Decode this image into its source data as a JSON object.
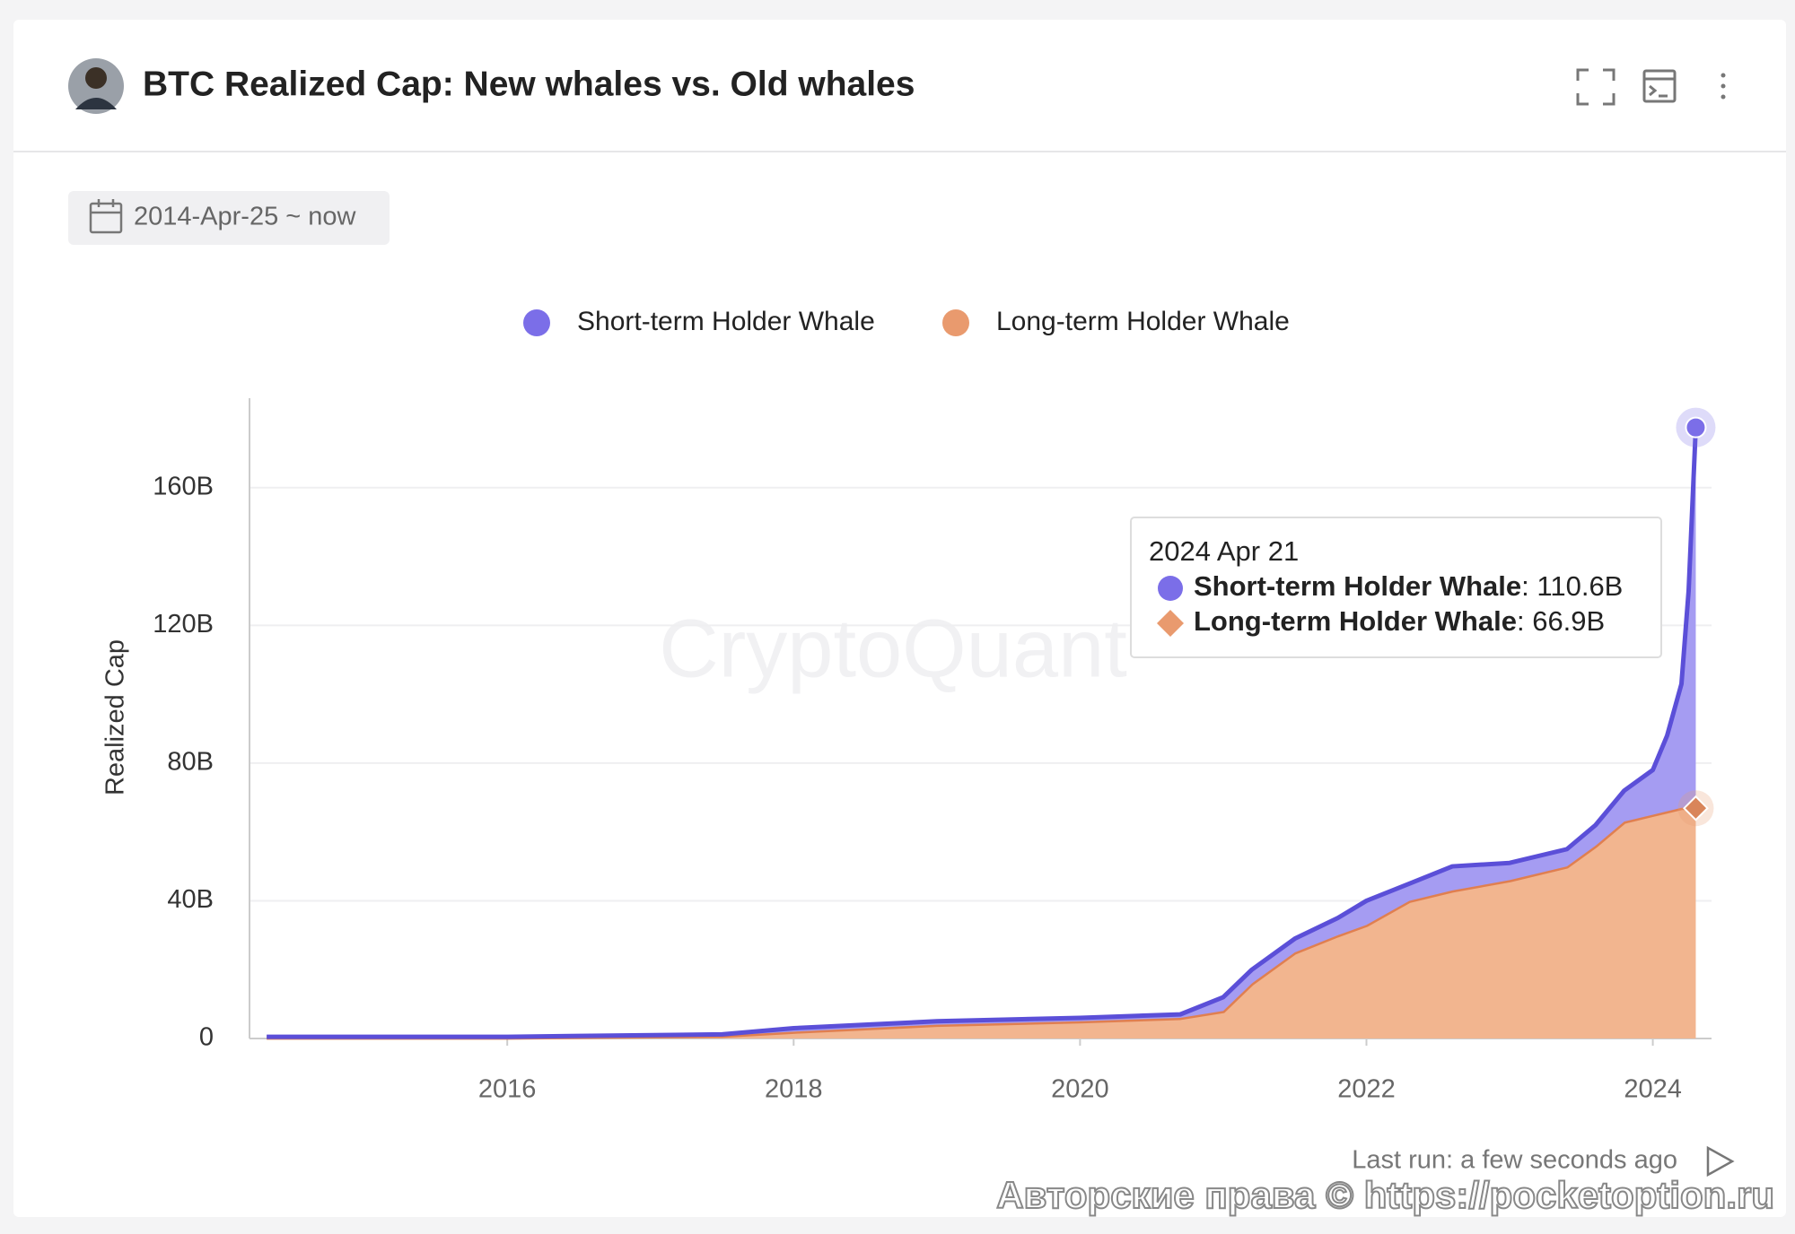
{
  "header": {
    "title": "BTC Realized Cap: New whales vs. Old whales",
    "date_range": "2014-Apr-25 ~ now"
  },
  "chart_data": {
    "type": "stacked-area",
    "y_label": "Realized Cap",
    "watermark": "CryptoQuant",
    "x": [
      2014.32,
      2016,
      2017.5,
      2018,
      2018.5,
      2019,
      2020,
      2020.7,
      2021.0,
      2021.2,
      2021.5,
      2021.8,
      2022.0,
      2022.3,
      2022.6,
      2023.0,
      2023.4,
      2023.6,
      2023.8,
      2024.0,
      2024.1,
      2024.2,
      2024.25,
      2024.3
    ],
    "series": [
      {
        "name": "Short-term Holder Whale",
        "color": "#7b6ee8",
        "values": [
          0.2,
          0.2,
          0.4,
          1,
          1,
          1,
          1,
          1,
          4,
          4,
          4,
          5,
          7,
          5,
          7,
          5,
          5,
          6,
          9,
          13,
          22,
          36,
          63,
          110.6
        ]
      },
      {
        "name": "Long-term Holder Whale",
        "color": "#e99a6e",
        "values": [
          0.3,
          0.3,
          0.8,
          2,
          3,
          4,
          5,
          6,
          8,
          16,
          25,
          30,
          33,
          40,
          43,
          46,
          50,
          56,
          63,
          65,
          66,
          67,
          67,
          66.9
        ]
      }
    ],
    "xlim": [
      2014.2,
      2024.41
    ],
    "xticks": [
      2016,
      2018,
      2020,
      2022,
      2024
    ],
    "ylim": [
      0,
      186
    ],
    "yticks": [
      0,
      {
        "value": 40,
        "label": "40B"
      },
      {
        "value": 80,
        "label": "80B"
      },
      {
        "value": 120,
        "label": "120B"
      },
      {
        "value": 160,
        "label": "160B"
      }
    ],
    "grid": true,
    "tooltip": {
      "date": "2024 Apr 21",
      "separator": ":",
      "labels": [
        "110.6B",
        "66.9B"
      ]
    }
  },
  "footer": {
    "last_run": "Last run: a few seconds ago",
    "copyright": "Авторские права © https://pocketoption.ru"
  }
}
